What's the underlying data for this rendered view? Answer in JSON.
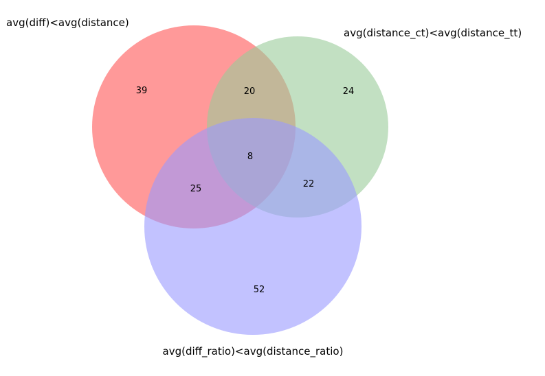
{
  "venn": {
    "sets": [
      {
        "name": "avg(diff)<avg(distance)",
        "color": "#ff9999"
      },
      {
        "name": "avg(distance_ct)<avg(distance_tt)",
        "color": "#99cc99"
      },
      {
        "name": "avg(diff_ratio)<avg(distance_ratio)",
        "color": "#9999ff"
      }
    ],
    "regions": {
      "only_a": "39",
      "only_b": "24",
      "only_c": "52",
      "a_and_b": "20",
      "a_and_c": "25",
      "b_and_c": "22",
      "a_b_c": "8"
    },
    "overlap_colors": {
      "a_and_b": "#e0bf99",
      "a_and_c": "#df99e0",
      "b_and_c": "#99bbdf",
      "a_b_c": "#bfabc4"
    }
  }
}
